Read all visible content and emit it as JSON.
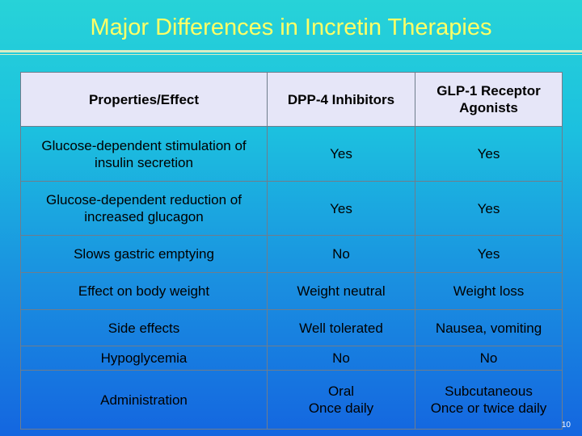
{
  "slide": {
    "title": "Major Differences in Incretin Therapies",
    "page_number": "10"
  },
  "table": {
    "headers": [
      "Properties/Effect",
      "DPP-4 Inhibitors",
      "GLP-1 Receptor Agonists"
    ],
    "rows": [
      [
        "Glucose-dependent stimulation of insulin secretion",
        "Yes",
        "Yes"
      ],
      [
        "Glucose-dependent reduction of increased glucagon",
        "Yes",
        "Yes"
      ],
      [
        "Slows gastric emptying",
        "No",
        "Yes"
      ],
      [
        "Effect on body weight",
        "Weight neutral",
        "Weight loss"
      ],
      [
        "Side effects",
        "Well tolerated",
        "Nausea, vomiting"
      ],
      [
        "Hypoglycemia",
        "No",
        "No"
      ],
      [
        "Administration",
        "Oral\nOnce daily",
        "Subcutaneous\nOnce or twice daily"
      ]
    ]
  },
  "colors": {
    "title": "#ffff66",
    "header_fill": "#e6e6f8",
    "background_top": "#27d3d8",
    "background_bottom": "#1466e0"
  }
}
